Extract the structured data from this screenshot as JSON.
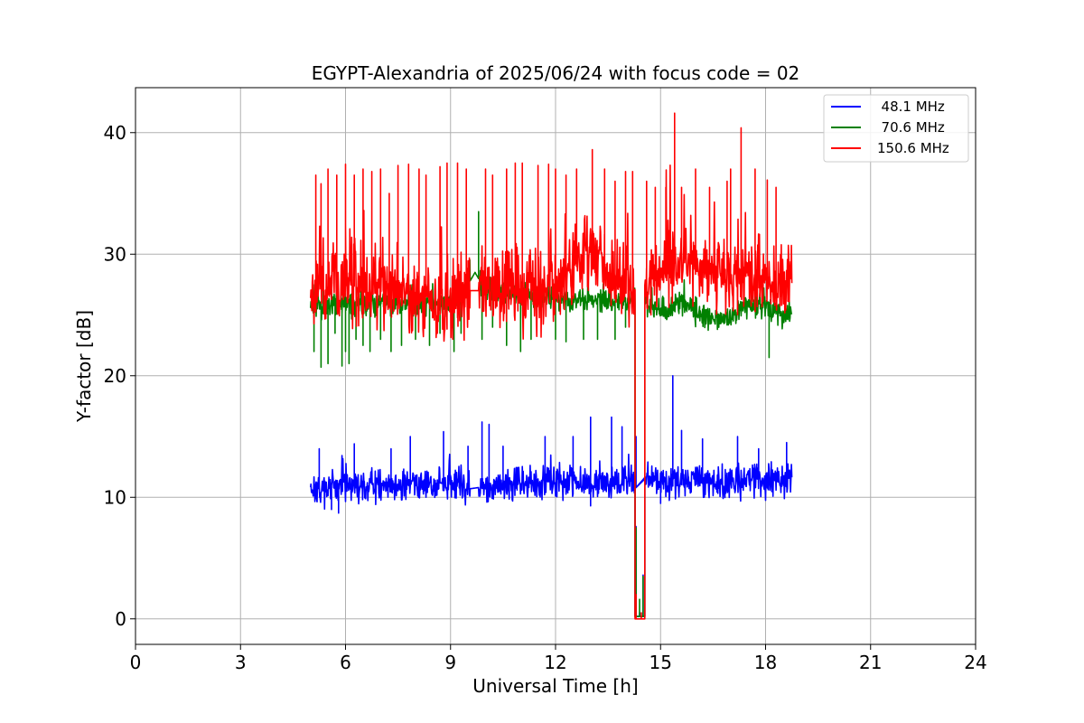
{
  "chart_data": {
    "type": "line",
    "title": "EGYPT-Alexandria of 2025/06/24 with focus code = 02",
    "xlabel": "Universal Time [h]",
    "ylabel": "Y-factor [dB]",
    "xlim": [
      0,
      24
    ],
    "ylim": [
      -2.1,
      43.7
    ],
    "xticks": [
      0,
      3,
      6,
      9,
      12,
      15,
      18,
      21,
      24
    ],
    "yticks": [
      0,
      10,
      20,
      30,
      40
    ],
    "grid": true,
    "legend_position": "top-right",
    "series": [
      {
        "name": "  48.1 MHz",
        "color": "#0000ff",
        "baseline": [
          [
            5.0,
            10.8
          ],
          [
            9.5,
            11.0
          ],
          [
            9.55,
            10.7
          ],
          [
            9.8,
            10.8
          ],
          [
            12.0,
            11.3
          ],
          [
            14.2,
            11.3
          ],
          [
            14.3,
            10.8
          ],
          [
            14.55,
            11.5
          ],
          [
            16.5,
            11.2
          ],
          [
            18.75,
            11.5
          ]
        ],
        "spread": 1.6,
        "spikes": [
          [
            5.25,
            14.0
          ],
          [
            5.6,
            9.0
          ],
          [
            5.8,
            8.7
          ],
          [
            6.25,
            14.4
          ],
          [
            7.3,
            14.0
          ],
          [
            7.85,
            15.0
          ],
          [
            8.8,
            15.4
          ],
          [
            9.5,
            14.2
          ],
          [
            9.9,
            16.2
          ],
          [
            10.1,
            16.0
          ],
          [
            10.5,
            14.2
          ],
          [
            11.7,
            15.0
          ],
          [
            12.5,
            15.0
          ],
          [
            13.0,
            16.6
          ],
          [
            13.0,
            9.3
          ],
          [
            13.6,
            16.6
          ],
          [
            13.9,
            15.8
          ],
          [
            14.3,
            15.0
          ],
          [
            15.0,
            9.5
          ],
          [
            15.35,
            20.0
          ],
          [
            15.6,
            15.5
          ],
          [
            16.2,
            14.8
          ],
          [
            17.2,
            15.0
          ],
          [
            17.8,
            14.0
          ],
          [
            18.6,
            14.5
          ]
        ],
        "dip": {
          "start": 14.27,
          "end": 14.55,
          "level": 0.2,
          "values": [
            [
              14.3,
              7.6
            ],
            [
              14.4,
              0.5
            ],
            [
              14.5,
              3.6
            ]
          ]
        }
      },
      {
        "name": "  70.6 MHz",
        "color": "#008000",
        "baseline": [
          [
            5.0,
            25.8
          ],
          [
            7.0,
            26.0
          ],
          [
            9.0,
            26.0
          ],
          [
            9.5,
            27.5
          ],
          [
            9.7,
            28.5
          ],
          [
            10.0,
            27.0
          ],
          [
            12.0,
            26.3
          ],
          [
            14.2,
            26.0
          ],
          [
            14.6,
            25.8
          ],
          [
            15.2,
            25.5
          ],
          [
            15.8,
            26.2
          ],
          [
            16.0,
            25.0
          ],
          [
            17.0,
            24.5
          ],
          [
            17.3,
            25.8
          ],
          [
            18.0,
            25.5
          ],
          [
            18.75,
            25.0
          ]
        ],
        "spread": 1.2,
        "spikes": [
          [
            5.1,
            22.0
          ],
          [
            5.3,
            20.7
          ],
          [
            5.5,
            21.0
          ],
          [
            5.7,
            23.5
          ],
          [
            5.9,
            20.8
          ],
          [
            6.0,
            22.0
          ],
          [
            6.1,
            21.0
          ],
          [
            6.3,
            23.0
          ],
          [
            6.5,
            22.5
          ],
          [
            6.7,
            22.0
          ],
          [
            7.0,
            23.0
          ],
          [
            7.3,
            22.0
          ],
          [
            7.6,
            22.5
          ],
          [
            8.0,
            23.0
          ],
          [
            8.4,
            22.5
          ],
          [
            8.7,
            23.5
          ],
          [
            9.1,
            22.0
          ],
          [
            9.3,
            23.5
          ],
          [
            9.8,
            33.5
          ],
          [
            9.9,
            23.0
          ],
          [
            10.2,
            24.0
          ],
          [
            10.6,
            22.5
          ],
          [
            11.0,
            22.0
          ],
          [
            11.3,
            23.0
          ],
          [
            12.0,
            23.0
          ],
          [
            12.3,
            22.8
          ],
          [
            12.8,
            23.0
          ],
          [
            13.2,
            23.0
          ],
          [
            13.7,
            23.0
          ],
          [
            14.0,
            24.0
          ],
          [
            16.0,
            26.5
          ],
          [
            17.6,
            27.0
          ],
          [
            18.1,
            21.5
          ]
        ],
        "dip": {
          "start": 14.27,
          "end": 14.55,
          "level": 0.2,
          "values": [
            [
              14.3,
              7.5
            ],
            [
              14.4,
              1.6
            ],
            [
              14.5,
              3.5
            ]
          ]
        }
      },
      {
        "name": "150.6 MHz",
        "color": "#ff0000",
        "baseline": [
          [
            5.0,
            27.2
          ],
          [
            6.0,
            27.5
          ],
          [
            8.0,
            26.5
          ],
          [
            9.5,
            26.4
          ],
          [
            9.55,
            27.0
          ],
          [
            9.75,
            27.0
          ],
          [
            11.0,
            27.0
          ],
          [
            12.0,
            27.5
          ],
          [
            13.0,
            30.0
          ],
          [
            14.2,
            27.0
          ],
          [
            14.6,
            27.5
          ],
          [
            15.4,
            29.5
          ],
          [
            16.0,
            29.0
          ],
          [
            17.0,
            28.5
          ],
          [
            18.0,
            28.0
          ],
          [
            18.75,
            28.0
          ]
        ],
        "spread": 3.8,
        "spikes": [
          [
            5.15,
            36.5
          ],
          [
            5.3,
            35.8
          ],
          [
            5.5,
            37.0
          ],
          [
            5.75,
            36.5
          ],
          [
            6.0,
            37.4
          ],
          [
            6.25,
            36.5
          ],
          [
            6.5,
            37.0
          ],
          [
            6.75,
            36.8
          ],
          [
            7.0,
            37.0
          ],
          [
            7.25,
            35.0
          ],
          [
            7.5,
            37.3
          ],
          [
            7.8,
            37.4
          ],
          [
            8.1,
            37.0
          ],
          [
            8.3,
            36.5
          ],
          [
            8.7,
            37.2
          ],
          [
            8.9,
            37.5
          ],
          [
            9.2,
            37.5
          ],
          [
            9.45,
            37.0
          ],
          [
            10.0,
            37.0
          ],
          [
            10.2,
            36.5
          ],
          [
            10.6,
            37.0
          ],
          [
            10.85,
            37.5
          ],
          [
            11.05,
            37.5
          ],
          [
            11.5,
            37.3
          ],
          [
            11.8,
            37.4
          ],
          [
            12.0,
            37.0
          ],
          [
            12.3,
            36.5
          ],
          [
            12.6,
            37.0
          ],
          [
            13.05,
            38.6
          ],
          [
            13.4,
            37.0
          ],
          [
            13.7,
            36.0
          ],
          [
            14.0,
            36.8
          ],
          [
            14.2,
            36.8
          ],
          [
            14.6,
            36.0
          ],
          [
            14.85,
            35.5
          ],
          [
            15.15,
            35.5
          ],
          [
            15.4,
            41.6
          ],
          [
            15.6,
            35.5
          ],
          [
            16.0,
            37.0
          ],
          [
            16.4,
            35.5
          ],
          [
            16.9,
            36.0
          ],
          [
            17.0,
            37.0
          ],
          [
            17.3,
            40.4
          ],
          [
            17.7,
            37.0
          ],
          [
            18.05,
            36.1
          ],
          [
            18.3,
            35.5
          ]
        ],
        "dip": {
          "start": 14.27,
          "end": 14.55,
          "level": 0.0,
          "values": [
            [
              14.3,
              2.0
            ],
            [
              14.45,
              0.5
            ]
          ]
        }
      }
    ]
  }
}
